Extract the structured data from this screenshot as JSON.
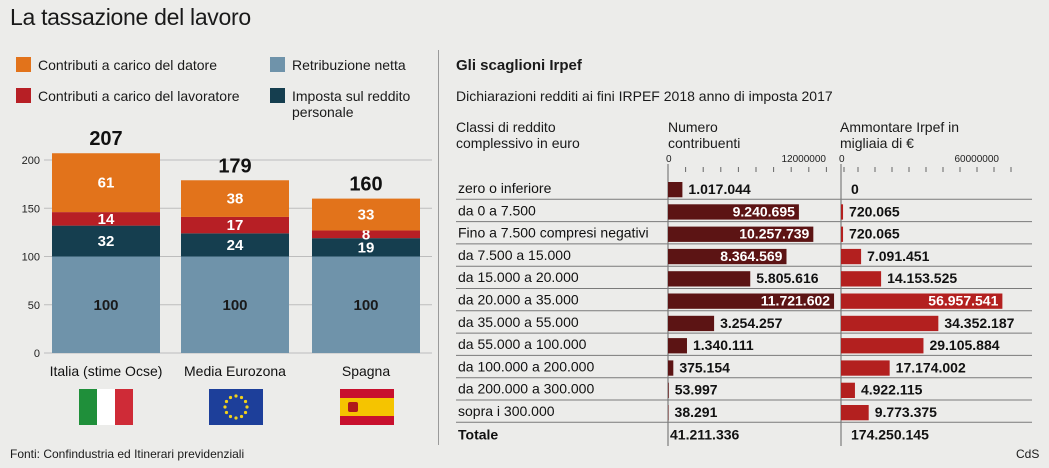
{
  "title": "La tassazione del lavoro",
  "legend": [
    {
      "key": "datore",
      "label": "Contributi a carico del datore",
      "color": "#e2731b"
    },
    {
      "key": "lavoratore",
      "label": "Contributi a carico del lavoratore",
      "color": "#b71f25"
    },
    {
      "key": "netta",
      "label": "Retribuzione netta",
      "color": "#6f93aa"
    },
    {
      "key": "irpef",
      "label": "Imposta sul reddito personale",
      "color": "#153e4f"
    }
  ],
  "footer": "Fonti: Confindustria ed Itinerari previdenziali",
  "credit": "CdS",
  "flags": {
    "italia": {
      "colors": [
        "#1f8f3a",
        "#ffffff",
        "#cf2b37"
      ]
    },
    "eurozona": {
      "background": "#1d3f9a",
      "stars": "#f2d21b"
    },
    "spagna": {
      "colors": [
        "#c8102e",
        "#f5c400",
        "#c8102e"
      ]
    }
  },
  "chart_data": [
    {
      "type": "bar",
      "stacked": true,
      "categories": [
        "Italia (stime Ocse)",
        "Media Eurozona",
        "Spagna"
      ],
      "totals": [
        207,
        179,
        160
      ],
      "ylim": [
        0,
        220
      ],
      "yticks": [
        0,
        50,
        100,
        150,
        200
      ],
      "grid": true,
      "series": [
        {
          "name": "Retribuzione netta",
          "key": "netta",
          "values": [
            100,
            100,
            100
          ]
        },
        {
          "name": "Imposta sul reddito personale",
          "key": "irpef",
          "values": [
            32,
            24,
            19
          ]
        },
        {
          "name": "Contributi a carico del lavoratore",
          "key": "lavoratore",
          "values": [
            14,
            17,
            8
          ]
        },
        {
          "name": "Contributi a carico del datore",
          "key": "datore",
          "values": [
            61,
            38,
            33
          ]
        }
      ]
    },
    {
      "type": "bar",
      "orientation": "horizontal",
      "title": "Gli scaglioni Irpef",
      "subtitle": "Dichiarazioni redditi ai fini IRPEF 2018 anno di imposta 2017",
      "col_header_class": "Classi di reddito complessivo in euro",
      "col_header_num": "Numero contribuenti",
      "col_header_amt": "Ammontare Irpef in migliaia di €",
      "num_axis": {
        "ticks": [
          "0",
          "12000000"
        ],
        "max": 12000000
      },
      "amt_axis": {
        "ticks": [
          "0",
          "60000000"
        ],
        "max": 60000000
      },
      "categories": [
        "zero o inferiore",
        "da 0 a 7.500",
        "Fino a 7.500 compresi negativi",
        "da 7.500 a 15.000",
        "da 15.000 a 20.000",
        "da 20.000 a 35.000",
        "da 35.000 a 55.000",
        "da 55.000 a 100.000",
        "da 100.000 a 200.000",
        "da 200.000 a 300.000",
        "sopra i 300.000"
      ],
      "contribuenti": [
        1017044,
        9240695,
        10257739,
        8364569,
        5805616,
        11721602,
        3254257,
        1340111,
        375154,
        53997,
        38291
      ],
      "contribuenti_labels": [
        "1.017.044",
        "9.240.695",
        "10.257.739",
        "8.364.569",
        "5.805.616",
        "11.721.602",
        "3.254.257",
        "1.340.111",
        "375.154",
        "53.997",
        "38.291"
      ],
      "ammontare": [
        0,
        720065,
        720065,
        7091451,
        14153525,
        56957541,
        34352187,
        29105884,
        17174002,
        4922115,
        9773375
      ],
      "ammontare_labels": [
        "0",
        "720.065",
        "720.065",
        "7.091.451",
        "14.153.525",
        "56.957.541",
        "34.352.187",
        "29.105.884",
        "17.174.002",
        "4.922.115",
        "9.773.375"
      ],
      "totale_label": "Totale",
      "totale_contribuenti": "41.211.336",
      "totale_ammontare": "174.250.145",
      "colors": {
        "num": "#5c1414",
        "amt": "#b3201f"
      }
    }
  ]
}
